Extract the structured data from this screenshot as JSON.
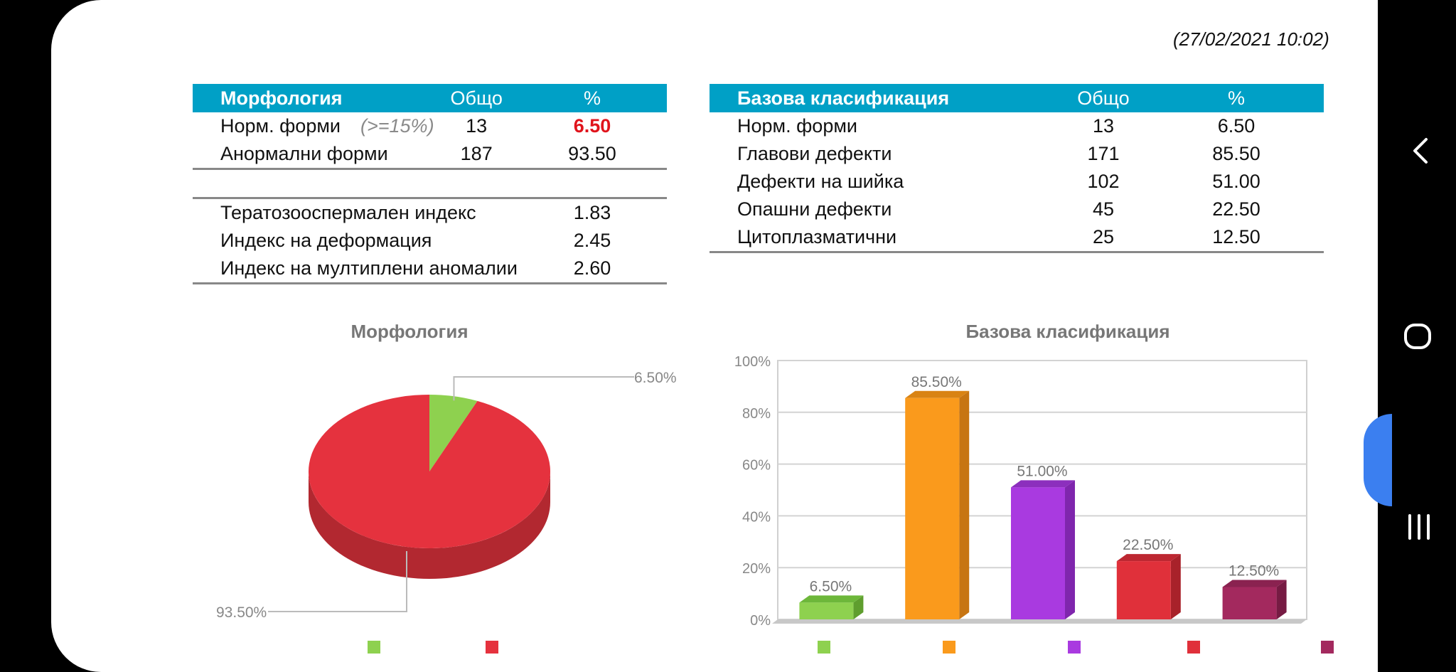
{
  "timestamp": "(27/02/2021  10:02)",
  "morph_table": {
    "headers": [
      "Морфология",
      "Общо",
      "%"
    ],
    "rows": [
      {
        "label": "Норм. форми",
        "hint": "(>=15%)",
        "count": "13",
        "pct": "6.50"
      },
      {
        "label": "Анормални форми",
        "count": "187",
        "pct": "93.50"
      }
    ],
    "indices": [
      {
        "label": "Тератозооспермален индекс",
        "value": "1.83"
      },
      {
        "label": "Индекс на деформация",
        "value": "2.45"
      },
      {
        "label": "Индекс на мултиплени аномалии",
        "value": "2.60"
      }
    ]
  },
  "class_table": {
    "headers": [
      "Базова класификация",
      "Общо",
      "%"
    ],
    "rows": [
      {
        "label": "Норм. форми",
        "count": "13",
        "pct": "6.50"
      },
      {
        "label": "Главови дефекти",
        "count": "171",
        "pct": "85.50"
      },
      {
        "label": "Дефекти на шийка",
        "count": "102",
        "pct": "51.00"
      },
      {
        "label": "Опашни дефекти",
        "count": "45",
        "pct": "22.50"
      },
      {
        "label": "Цитоплазматични",
        "count": "25",
        "pct": "12.50"
      }
    ]
  },
  "chart_data": [
    {
      "type": "pie",
      "title": "Морфология",
      "slices": [
        {
          "value": 6.5,
          "label": "6.50%",
          "color": "#8ed14f",
          "side": "#5f9e2e"
        },
        {
          "value": 93.5,
          "label": "93.50%",
          "color": "#e5323e",
          "side": "#b22830"
        }
      ],
      "legend": "bottom"
    },
    {
      "type": "bar",
      "title": "Базова класификация",
      "values": [
        6.5,
        85.5,
        51.0,
        22.5,
        12.5
      ],
      "labels": [
        "6.50%",
        "85.50%",
        "51.00%",
        "22.50%",
        "12.50%"
      ],
      "colors": [
        "#8ed14f",
        "#fa9a1c",
        "#a93ae0",
        "#e0303a",
        "#a3295e"
      ],
      "side_colors": [
        "#5f9e2e",
        "#c77512",
        "#7f26ad",
        "#a8222a",
        "#761b43"
      ],
      "top_colors": [
        "#6db73a",
        "#d98313",
        "#8c2fbd",
        "#bd2731",
        "#8a2250"
      ],
      "ylim": [
        0,
        100
      ],
      "ytick_labels": [
        "0%",
        "20%",
        "40%",
        "60%",
        "80%",
        "100%"
      ],
      "grid": true,
      "legend": "bottom"
    }
  ]
}
